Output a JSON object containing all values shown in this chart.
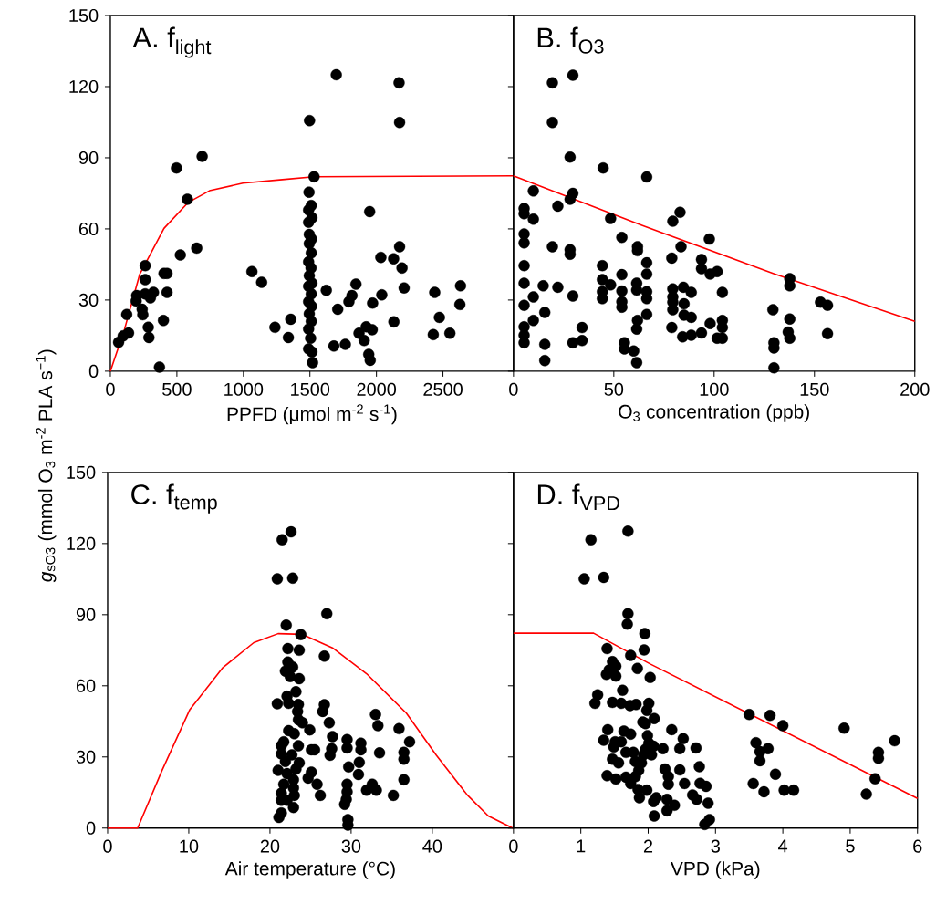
{
  "chart_data": [
    {
      "type": "scatter",
      "title": "A. f$_{light}$",
      "xlabel": "PPFD (μmol m$^{-2}$ s$^{-1}$)",
      "ylabel": "*g*$_{sO3}$ (mmol O$_{3}$ m$^{-2}$ PLA s$^{−1}$)",
      "xlim": [
        0,
        3030
      ],
      "ylim": [
        0,
        150
      ],
      "xticks": [
        0,
        500,
        1000,
        1500,
        2000,
        2500
      ],
      "yticks": [
        0,
        30,
        60,
        90,
        120,
        150
      ],
      "series": [
        {
          "marker": "circle",
          "color": "#000000",
          "x": [
            1698,
            2170,
            1497,
            2174,
            690,
            497,
            1531,
            579,
            1493,
            1949,
            1510,
            1490,
            1515,
            1490,
            1495,
            1512,
            1495,
            1510,
            1490,
            1508,
            1495,
            1515,
            1490,
            1510,
            1490,
            1512,
            1495,
            1510,
            1490,
            1505,
            1490,
            1515,
            1520,
            649,
            526,
            2174,
            2033,
            2129,
            2192,
            1064,
            1137,
            262,
            262,
            403,
            426,
            2208,
            2632,
            1846,
            1623,
            2438,
            426,
            324,
            262,
            198,
            301,
            194,
            1816,
            1793,
            2040,
            1971,
            2627,
            1709,
            239,
            244,
            123,
            2473,
            1356,
            399,
            2131,
            1237,
            285,
            1923,
            1968,
            1869,
            2427,
            2552,
            137,
            96,
            290,
            1338,
            1908,
            62,
            1680,
            1766,
            1942,
            1953,
            369
          ],
          "values": [
            125,
            121.6,
            105.7,
            104.9,
            90.6,
            85.7,
            82,
            72.5,
            75.5,
            67.3,
            69.9,
            68,
            64.7,
            62.8,
            57.7,
            55.7,
            53.8,
            49.9,
            46.1,
            43.5,
            40.3,
            37.1,
            35.8,
            32.6,
            29.3,
            27.4,
            24.2,
            21,
            17.8,
            13.9,
            9.4,
            8.1,
            3.6,
            51.9,
            49,
            52.5,
            48,
            47.4,
            43.5,
            42,
            37.5,
            44.5,
            38.6,
            41.2,
            41.2,
            35.1,
            36,
            36.7,
            34.1,
            33.2,
            33.2,
            33.2,
            32.6,
            31.9,
            30.9,
            29.6,
            31.9,
            29.3,
            32.2,
            28.7,
            28.1,
            26.1,
            26.1,
            23.8,
            23.9,
            22.7,
            21.9,
            21.4,
            20.8,
            18.5,
            18.5,
            18.7,
            17.5,
            16,
            15.4,
            16,
            16.1,
            14.9,
            14.2,
            14.2,
            12.9,
            12.2,
            10.6,
            11.3,
            7.1,
            4.6,
            1.7
          ]
        },
        {
          "type": "line",
          "marker": "none",
          "color": "#ff0000",
          "x": [
            0,
            107,
            221,
            403,
            586,
            745,
            996,
            1292,
            1531,
            3030
          ],
          "values": [
            0,
            17.8,
            40.9,
            60.2,
            71.2,
            76.1,
            79.3,
            80.8,
            82,
            82.4
          ]
        }
      ]
    },
    {
      "type": "scatter",
      "title": "B. f$_{O3}$",
      "xlabel": "O$_{3}$ concentration (ppb)",
      "xlim": [
        0,
        200
      ],
      "ylim": [
        0,
        150
      ],
      "xticks": [
        0,
        50,
        100,
        150,
        200
      ],
      "yticks": [
        0,
        30,
        60,
        90,
        120,
        150
      ],
      "tick_labels": "x",
      "series": [
        {
          "marker": "circle",
          "color": "#000000",
          "x": [
            29.6,
            19.4,
            19.4,
            28.2,
            44.7,
            66.4,
            9.9,
            29.6,
            28.2,
            22.1,
            5.3,
            5.3,
            9.9,
            48.4,
            83,
            79.4,
            5.3,
            5.3,
            54,
            97.6,
            19.4,
            28.2,
            28.2,
            61.8,
            61.8,
            83.5,
            78.9,
            93.7,
            93.7,
            5.3,
            44.3,
            66.4,
            98,
            101.5,
            66.4,
            54,
            5.3,
            14.8,
            22.1,
            44.3,
            48.4,
            61.4,
            61.4,
            66.4,
            66.4,
            44.3,
            44.3,
            54,
            54,
            54,
            29.6,
            9.9,
            79.4,
            79.4,
            79.4,
            84.7,
            88.6,
            104.1,
            85,
            5.3,
            79.4,
            15.6,
            66.4,
            85,
            88.6,
            129.3,
            153,
            156.5,
            137.7,
            137.7,
            9.9,
            61.8,
            98,
            104.1,
            104.1,
            137.7,
            5.3,
            78.9,
            61.4,
            34.2,
            93.7,
            136.9,
            137.7,
            156.5,
            5.3,
            5.3,
            29.6,
            34.2,
            84.3,
            88.6,
            101.5,
            104.1,
            15.6,
            55.3,
            55.3,
            59.9,
            61.4,
            15.6,
            129.8,
            129.8,
            129.8
          ],
          "values": [
            124.8,
            121.6,
            104.9,
            90.3,
            85.7,
            81.9,
            76,
            75,
            72.5,
            69.6,
            68.6,
            66.4,
            64.1,
            64.4,
            67,
            63.2,
            57.9,
            54.1,
            56.4,
            55.7,
            52.5,
            51.2,
            49.3,
            52.5,
            50.8,
            52.5,
            47.7,
            47.1,
            43.2,
            44.5,
            44.5,
            45.7,
            40.9,
            42,
            40.9,
            40.7,
            37.1,
            36,
            35.4,
            38.6,
            36.4,
            37.1,
            34.2,
            33.5,
            30.6,
            33.5,
            30.6,
            33.8,
            29.3,
            27,
            31.7,
            31.3,
            34.7,
            31.3,
            29.1,
            35.4,
            33.2,
            33.2,
            28.4,
            27.8,
            25.9,
            24.8,
            23.9,
            23.6,
            22.7,
            25.9,
            29.1,
            27.8,
            39,
            36,
            21.4,
            21.4,
            20.1,
            21.4,
            18.4,
            22,
            18.7,
            18.4,
            17.8,
            18.4,
            16.1,
            16.5,
            13.9,
            15.8,
            15.2,
            12,
            12,
            12.9,
            14.5,
            15.2,
            13.9,
            13.9,
            11.3,
            12,
            9.4,
            8.5,
            3.6,
            4.5,
            12,
            9.8,
            1.4
          ]
        },
        {
          "type": "line",
          "marker": "none",
          "color": "#ff0000",
          "x": [
            0,
            64,
            130,
            200
          ],
          "values": [
            82.4,
            61.5,
            41,
            21
          ]
        }
      ]
    },
    {
      "type": "scatter",
      "title": "C. f$_{temp}$",
      "xlabel": "Air temperature (°C)",
      "xlim": [
        0,
        50
      ],
      "ylim": [
        0,
        150
      ],
      "xticks": [
        0,
        10,
        20,
        30,
        40
      ],
      "yticks": [
        0,
        30,
        60,
        90,
        120,
        150
      ],
      "series": [
        {
          "marker": "circle",
          "color": "#000000",
          "x": [
            22.6,
            21.5,
            20.9,
            22.8,
            27,
            22,
            23.8,
            22.2,
            23.6,
            26.7,
            22.2,
            22.8,
            21.9,
            22.5,
            23.6,
            23.2,
            22.1,
            22.3,
            20.9,
            23.5,
            26.7,
            26.5,
            23.4,
            23.5,
            24,
            27.3,
            33,
            33.3,
            35.9,
            24.9,
            22.3,
            23,
            27.7,
            37.2,
            29.5,
            31.2,
            29.5,
            31.2,
            21.7,
            21.4,
            23.5,
            25.1,
            25.5,
            27.6,
            27.4,
            21.4,
            22.7,
            33.5,
            36.5,
            36.5,
            21.9,
            23.6,
            31,
            29.7,
            21,
            23.2,
            22.1,
            25.1,
            30.9,
            22.9,
            24.7,
            21.7,
            36.5,
            25.8,
            29.5,
            32.6,
            31.9,
            33.1,
            29.5,
            22.9,
            21.4,
            26.2,
            35.2,
            23,
            21.4,
            22.1,
            29.4,
            29.2,
            22.9,
            21.4,
            21.1,
            29.6,
            29.6
          ],
          "values": [
            124.9,
            121.6,
            105.1,
            105.4,
            90.4,
            85.6,
            81.6,
            75.7,
            75,
            72.5,
            70,
            67.9,
            66.2,
            63.9,
            63,
            57.5,
            55.6,
            52.6,
            52.4,
            52.1,
            52,
            49.2,
            49.2,
            45.7,
            44.4,
            44.4,
            47.9,
            43.2,
            41.9,
            41.4,
            41.1,
            39.8,
            38.6,
            36.4,
            37.3,
            35.8,
            33.8,
            33,
            36.4,
            34.7,
            34.7,
            33,
            33,
            33.5,
            30.7,
            31.3,
            30.9,
            31.7,
            31.9,
            29.1,
            28.1,
            27.5,
            27.7,
            25.8,
            24.3,
            24.9,
            23,
            23.6,
            22.6,
            20.4,
            21.1,
            18.5,
            20.4,
            18.5,
            18.5,
            18.5,
            16,
            16,
            15.3,
            16.9,
            14.7,
            13.8,
            13.8,
            13.8,
            11.7,
            11.7,
            12.1,
            10,
            8.7,
            6.4,
            4.5,
            3.6,
            1.3
          ]
        },
        {
          "type": "line",
          "marker": "none",
          "color": "#ff0000",
          "x": [
            0,
            3.7,
            6.7,
            10.1,
            14.2,
            18,
            21,
            24,
            27.7,
            31.9,
            36.8,
            40.5,
            44.3,
            46.9,
            49.9
          ],
          "values": [
            0,
            0,
            24.3,
            49.8,
            67.7,
            78.2,
            82,
            81.7,
            76,
            65.1,
            48.5,
            30.7,
            14,
            5.1,
            0
          ]
        }
      ]
    },
    {
      "type": "scatter",
      "title": "D. f$_{VPD}$",
      "xlabel": "VPD (kPa)",
      "xlim": [
        0,
        6
      ],
      "ylim": [
        0,
        150
      ],
      "xticks": [
        0,
        1,
        2,
        3,
        4,
        5,
        6
      ],
      "yticks": [
        0,
        30,
        60,
        90,
        120,
        150
      ],
      "tick_labels": "x",
      "series": [
        {
          "marker": "circle",
          "color": "#000000",
          "x": [
            1.7,
            1.15,
            1.05,
            1.34,
            1.7,
            1.69,
            1.95,
            1.94,
            1.39,
            1.74,
            1.47,
            1.52,
            1.84,
            1.42,
            1.38,
            1.52,
            2.03,
            1.62,
            1.25,
            1.21,
            1.47,
            1.6,
            1.73,
            1.82,
            2.01,
            1.98,
            3.5,
            3.81,
            4,
            4.91,
            5.66,
            1.92,
            2.09,
            1.96,
            1.4,
            1.64,
            1.74,
            1.99,
            2.35,
            2.52,
            1.34,
            1.51,
            1.6,
            2.01,
            1.96,
            2.08,
            1.49,
            2.22,
            2.47,
            2.71,
            3.6,
            3.66,
            3.78,
            1.67,
            1.78,
            1.93,
            2.05,
            5.42,
            5.42,
            1.47,
            1.56,
            1.81,
            1.9,
            3.66,
            2.76,
            2.25,
            2.47,
            1.86,
            3.89,
            1.39,
            1.52,
            1.67,
            1.81,
            2.3,
            5.37,
            1.74,
            2.3,
            2.54,
            2.77,
            2.86,
            3.56,
            3.72,
            4.02,
            4.16,
            5.24,
            1.85,
            1.98,
            1.87,
            2.66,
            2.72,
            2.12,
            2.08,
            2.28,
            2.89,
            2.39,
            2.28,
            2.09,
            2.91,
            2.84
          ],
          "values": [
            125.2,
            121.6,
            105.1,
            105.7,
            90.4,
            86,
            82,
            75.1,
            75.7,
            72.8,
            70.2,
            68.3,
            67.3,
            66.7,
            64.8,
            64.1,
            63.5,
            58.1,
            56.2,
            52.6,
            53,
            52.6,
            51.7,
            52.1,
            52.6,
            49.6,
            47.9,
            47.5,
            43.2,
            42.1,
            36.8,
            44.7,
            46.2,
            44.1,
            41.5,
            40.9,
            39.6,
            39,
            41.5,
            37.7,
            37,
            36.4,
            36.4,
            35.8,
            33.2,
            34.5,
            34.2,
            33.5,
            33.5,
            33.8,
            36,
            32.2,
            33.5,
            31.9,
            31.9,
            30.9,
            30.9,
            31.9,
            29.4,
            29.1,
            27.5,
            28.1,
            27.5,
            28.4,
            25.9,
            24.9,
            24.5,
            24.3,
            22.7,
            22.1,
            20.7,
            21.5,
            21.7,
            21.7,
            20.8,
            18.8,
            18.5,
            18.8,
            18.9,
            17.6,
            18.8,
            15.3,
            16,
            16,
            14.3,
            16.3,
            16,
            12.8,
            14,
            12.1,
            12.8,
            11.2,
            12.1,
            10.5,
            9.6,
            7.3,
            5.1,
            3.6,
            1.5
          ]
        },
        {
          "type": "line",
          "marker": "none",
          "color": "#ff0000",
          "x": [
            0,
            1.19,
            2.03,
            6
          ],
          "values": [
            82.2,
            82.2,
            69.2,
            12.5
          ]
        }
      ]
    }
  ]
}
